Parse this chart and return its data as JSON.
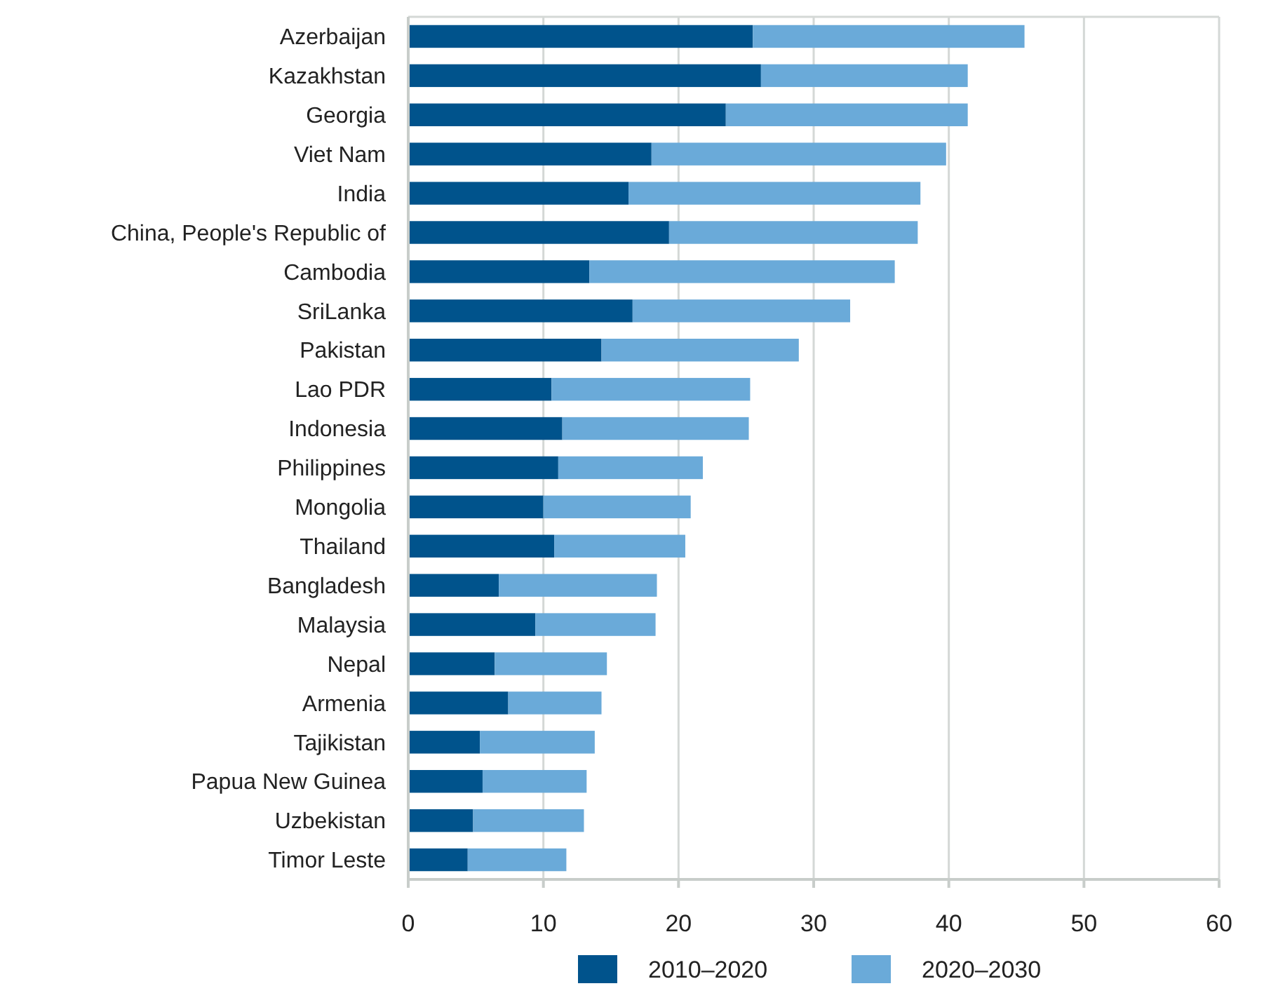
{
  "chart_data": {
    "type": "bar",
    "orientation": "horizontal",
    "stacked": true,
    "categories": [
      "Azerbaijan",
      "Kazakhstan",
      "Georgia",
      "Viet Nam",
      "India",
      "China, People's Republic of",
      "Cambodia",
      "SriLanka",
      "Pakistan",
      "Lao PDR",
      "Indonesia",
      "Philippines",
      "Mongolia",
      "Thailand",
      "Bangladesh",
      "Malaysia",
      "Nepal",
      "Armenia",
      "Tajikistan",
      "Papua New Guinea",
      "Uzbekistan",
      "Timor Leste"
    ],
    "series": [
      {
        "name": "2010–2020",
        "color": "#00538c",
        "values": [
          25.5,
          26.1,
          23.5,
          18.0,
          16.3,
          19.3,
          13.4,
          16.6,
          14.3,
          10.6,
          11.4,
          11.1,
          10.0,
          10.8,
          6.7,
          9.4,
          6.4,
          7.4,
          5.3,
          5.5,
          4.8,
          4.4
        ]
      },
      {
        "name": "2020–2030",
        "color": "#6aaad9",
        "values": [
          20.1,
          15.3,
          17.9,
          21.8,
          21.6,
          18.4,
          22.6,
          16.1,
          14.6,
          14.7,
          13.8,
          10.7,
          10.9,
          9.7,
          11.7,
          8.9,
          8.3,
          6.9,
          8.5,
          7.7,
          8.2,
          7.3
        ]
      }
    ],
    "xlim": [
      0,
      60
    ],
    "xticks": [
      0,
      10,
      20,
      30,
      40,
      50,
      60
    ],
    "grid": "x",
    "legend": "bottom"
  }
}
